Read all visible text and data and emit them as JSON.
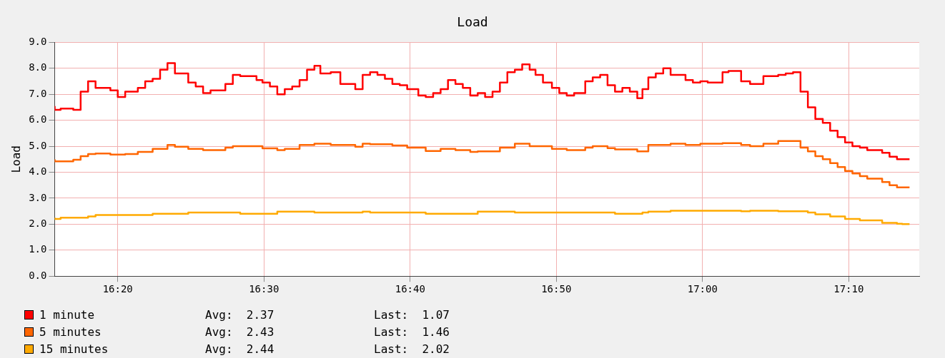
{
  "chart_data": {
    "type": "step",
    "title": "Load",
    "ylabel": "Load",
    "xlim": [
      16.2614,
      17.2471
    ],
    "xticks": [
      {
        "value": 16.3333,
        "label": "16:20"
      },
      {
        "value": 16.5,
        "label": "16:30"
      },
      {
        "value": 16.6667,
        "label": "16:40"
      },
      {
        "value": 16.8333,
        "label": "16:50"
      },
      {
        "value": 17.0,
        "label": "17:00"
      },
      {
        "value": 17.1667,
        "label": "17:10"
      }
    ],
    "ylim": [
      0,
      9
    ],
    "yticks": [
      {
        "value": 0,
        "label": "0.0"
      },
      {
        "value": 1,
        "label": "1.0"
      },
      {
        "value": 2,
        "label": "2.0"
      },
      {
        "value": 3,
        "label": "3.0"
      },
      {
        "value": 4,
        "label": "4.0"
      },
      {
        "value": 5,
        "label": "5.0"
      },
      {
        "value": 6,
        "label": "6.0"
      },
      {
        "value": 7,
        "label": "7.0"
      },
      {
        "value": 8,
        "label": "8.0"
      },
      {
        "value": 9,
        "label": "9.0"
      }
    ],
    "grid": true,
    "legend": "bottom",
    "marker": "none",
    "line_style": "solid",
    "annotations": [
      "Avg:  2.37",
      "Last:  1.07",
      "Avg:  2.43",
      "Last:  1.46",
      "Avg:  2.44",
      "Last:  2.02"
    ],
    "series": [
      {
        "name": "1 minute",
        "color": "#ff0000",
        "x": [
          16.2614,
          16.2682,
          16.2826,
          16.291,
          16.2995,
          16.308,
          16.3249,
          16.3333,
          16.3418,
          16.3562,
          16.3646,
          16.3731,
          16.3816,
          16.39,
          16.3985,
          16.4137,
          16.4222,
          16.4306,
          16.4391,
          16.456,
          16.4645,
          16.4729,
          16.4915,
          16.4983,
          16.5068,
          16.5152,
          16.5237,
          16.5322,
          16.5406,
          16.5491,
          16.5575,
          16.5643,
          16.5761,
          16.5871,
          16.6041,
          16.6125,
          16.621,
          16.6294,
          16.6379,
          16.6464,
          16.6548,
          16.6633,
          16.676,
          16.6844,
          16.6929,
          16.7014,
          16.7098,
          16.7183,
          16.7267,
          16.7352,
          16.7437,
          16.7521,
          16.7606,
          16.769,
          16.7775,
          16.786,
          16.7944,
          16.8029,
          16.8096,
          16.8181,
          16.8283,
          16.8367,
          16.8452,
          16.8536,
          16.8663,
          16.8748,
          16.8833,
          16.8917,
          16.9002,
          16.9086,
          16.9171,
          16.9256,
          16.9315,
          16.9382,
          16.9467,
          16.9552,
          16.9636,
          16.9806,
          16.989,
          16.9975,
          17.0059,
          17.0228,
          17.0296,
          17.044,
          17.0542,
          17.0694,
          17.0863,
          17.0948,
          17.1032,
          17.1117,
          17.1201,
          17.1286,
          17.1371,
          17.1455,
          17.154,
          17.1625,
          17.1709,
          17.1794,
          17.1878,
          17.2048,
          17.2132,
          17.2217,
          17.2276,
          17.236
        ],
        "values": [
          6.55,
          6.4,
          6.45,
          6.4,
          7.1,
          7.5,
          7.25,
          7.15,
          6.9,
          7.1,
          7.25,
          7.5,
          7.6,
          7.95,
          8.2,
          7.8,
          7.45,
          7.3,
          7.05,
          7.15,
          7.4,
          7.75,
          7.7,
          7.55,
          7.45,
          7.3,
          7.0,
          7.2,
          7.3,
          7.55,
          7.95,
          8.1,
          7.8,
          7.85,
          7.4,
          7.2,
          7.75,
          7.85,
          7.75,
          7.6,
          7.4,
          7.35,
          7.2,
          6.95,
          6.9,
          7.05,
          7.2,
          7.55,
          7.4,
          7.25,
          6.95,
          7.05,
          6.9,
          7.1,
          7.45,
          7.85,
          7.95,
          8.15,
          7.95,
          7.75,
          7.45,
          7.25,
          7.05,
          6.95,
          7.05,
          7.5,
          7.65,
          7.75,
          7.35,
          7.1,
          7.25,
          7.1,
          6.85,
          7.2,
          7.65,
          7.8,
          8.0,
          7.75,
          7.55,
          7.45,
          7.5,
          7.45,
          7.85,
          7.9,
          7.5,
          7.4,
          7.7,
          7.75,
          7.8,
          7.85,
          7.1,
          6.5,
          6.05,
          5.9,
          5.6,
          5.35,
          5.15,
          5.0,
          4.95,
          4.85,
          4.75,
          4.6,
          4.5,
          4.5
        ]
      },
      {
        "name": "5 minutes",
        "color": "#ff6600",
        "x": [
          16.2614,
          16.2826,
          16.291,
          16.2995,
          16.308,
          16.3249,
          16.3418,
          16.3562,
          16.3731,
          16.39,
          16.3985,
          16.4137,
          16.4306,
          16.4391,
          16.456,
          16.4645,
          16.4729,
          16.4983,
          16.5152,
          16.5237,
          16.5406,
          16.5575,
          16.5761,
          16.6041,
          16.6125,
          16.621,
          16.6464,
          16.6633,
          16.6844,
          16.7014,
          16.7183,
          16.7352,
          16.7437,
          16.769,
          16.786,
          16.8029,
          16.8283,
          16.8452,
          16.8663,
          16.8748,
          16.8917,
          16.9002,
          16.9256,
          16.9382,
          16.9636,
          16.9806,
          16.9975,
          17.0228,
          17.044,
          17.0542,
          17.0694,
          17.0863,
          17.1117,
          17.1201,
          17.1286,
          17.1371,
          17.1455,
          17.154,
          17.1625,
          17.1709,
          17.1794,
          17.1878,
          17.2048,
          17.2132,
          17.2217,
          17.2276,
          17.236
        ],
        "values": [
          4.5,
          4.42,
          4.48,
          4.62,
          4.7,
          4.72,
          4.68,
          4.7,
          4.78,
          4.9,
          5.05,
          4.98,
          4.9,
          4.85,
          4.85,
          4.95,
          5.0,
          5.0,
          4.92,
          4.85,
          4.9,
          5.05,
          5.1,
          5.05,
          4.98,
          5.1,
          5.08,
          5.03,
          4.95,
          4.82,
          4.9,
          4.85,
          4.78,
          4.8,
          4.95,
          5.1,
          5.0,
          4.9,
          4.85,
          4.95,
          5.0,
          4.93,
          4.88,
          4.8,
          5.05,
          5.1,
          5.05,
          5.1,
          5.12,
          5.05,
          5.0,
          5.1,
          5.2,
          4.95,
          4.8,
          4.62,
          4.5,
          4.35,
          4.2,
          4.05,
          3.95,
          3.85,
          3.75,
          3.62,
          3.5,
          3.42,
          3.42
        ]
      },
      {
        "name": "15 minutes",
        "color": "#ffaa00",
        "x": [
          16.2614,
          16.2682,
          16.2995,
          16.308,
          16.3731,
          16.3985,
          16.4137,
          16.4729,
          16.5152,
          16.5575,
          16.6125,
          16.621,
          16.6844,
          16.7437,
          16.786,
          16.8367,
          16.9002,
          16.9315,
          16.9382,
          16.9636,
          17.044,
          17.0542,
          17.0863,
          17.1201,
          17.1286,
          17.1455,
          17.1625,
          17.1794,
          17.2048,
          17.2217,
          17.2276,
          17.236
        ],
        "values": [
          2.25,
          2.2,
          2.25,
          2.3,
          2.35,
          2.4,
          2.4,
          2.45,
          2.4,
          2.48,
          2.45,
          2.48,
          2.45,
          2.4,
          2.48,
          2.45,
          2.45,
          2.4,
          2.45,
          2.48,
          2.52,
          2.5,
          2.52,
          2.5,
          2.45,
          2.38,
          2.3,
          2.2,
          2.15,
          2.05,
          2.02,
          2.0
        ]
      }
    ]
  }
}
